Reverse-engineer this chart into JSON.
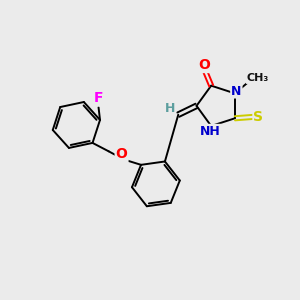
{
  "background_color": "#ebebeb",
  "bond_color": "#000000",
  "atom_colors": {
    "O": "#ff0000",
    "N": "#0000cc",
    "S": "#cccc00",
    "F": "#ff00ff",
    "C": "#000000",
    "H": "#5c9e9e"
  },
  "figsize": [
    3.0,
    3.0
  ],
  "dpi": 100
}
